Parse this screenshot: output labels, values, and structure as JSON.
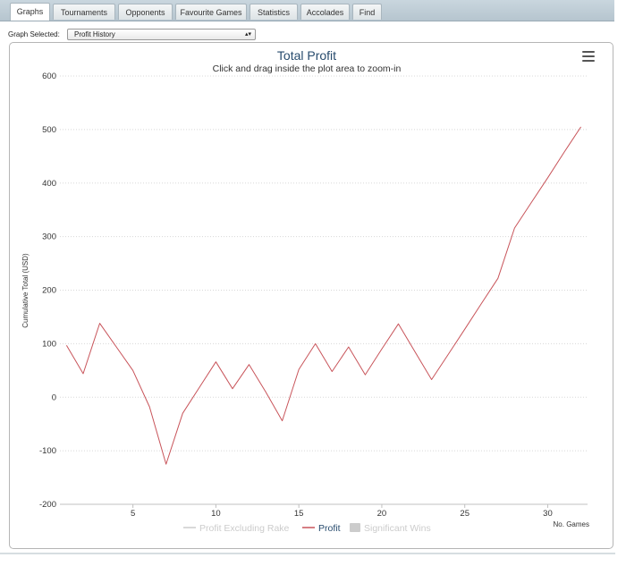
{
  "tabs": [
    {
      "label": "Graphs",
      "active": true
    },
    {
      "label": "Tournaments",
      "active": false
    },
    {
      "label": "Opponents",
      "active": false
    },
    {
      "label": "Favourite Games",
      "active": false
    },
    {
      "label": "Statistics",
      "active": false
    },
    {
      "label": "Accolades",
      "active": false
    },
    {
      "label": "Find",
      "active": false
    }
  ],
  "graph_selector": {
    "label": "Graph Selected:",
    "value": "Profit History"
  },
  "menu_icon": "hamburger-menu-icon",
  "chart_data": {
    "type": "line",
    "title": "Total Profit",
    "subtitle": "Click and drag inside the plot area to zoom-in",
    "xlabel": "No. Games",
    "ylabel": "Cumulative Total (USD)",
    "xlim": [
      0.6,
      32.4
    ],
    "ylim": [
      -200,
      600
    ],
    "x_ticks": [
      5,
      10,
      15,
      20,
      25,
      30
    ],
    "y_ticks": [
      -200,
      -100,
      0,
      100,
      200,
      300,
      400,
      500,
      600
    ],
    "grid": true,
    "legend_position": "bottom",
    "legend": [
      {
        "name": "Profit Excluding Rake",
        "visible": false,
        "color": "#cccccc",
        "marker": "line"
      },
      {
        "name": "Profit",
        "visible": true,
        "color": "#c8545a",
        "marker": "line"
      },
      {
        "name": "Significant Wins",
        "visible": false,
        "color": "#cccccc",
        "marker": "square"
      }
    ],
    "series": [
      {
        "name": "Profit",
        "color": "#c8545a",
        "x": [
          1,
          2,
          3,
          4,
          5,
          6,
          7,
          8,
          9,
          10,
          11,
          12,
          13,
          14,
          15,
          16,
          17,
          18,
          19,
          20,
          21,
          22,
          23,
          24,
          25,
          26,
          27,
          28,
          29,
          30,
          31,
          32
        ],
        "values": [
          97,
          44,
          138,
          94,
          50,
          -18,
          -125,
          -30,
          18,
          66,
          16,
          61,
          10,
          -44,
          52,
          100,
          48,
          94,
          42,
          90,
          137,
          85,
          33,
          80,
          127,
          175,
          222,
          316,
          363,
          410,
          458,
          505
        ]
      }
    ]
  }
}
